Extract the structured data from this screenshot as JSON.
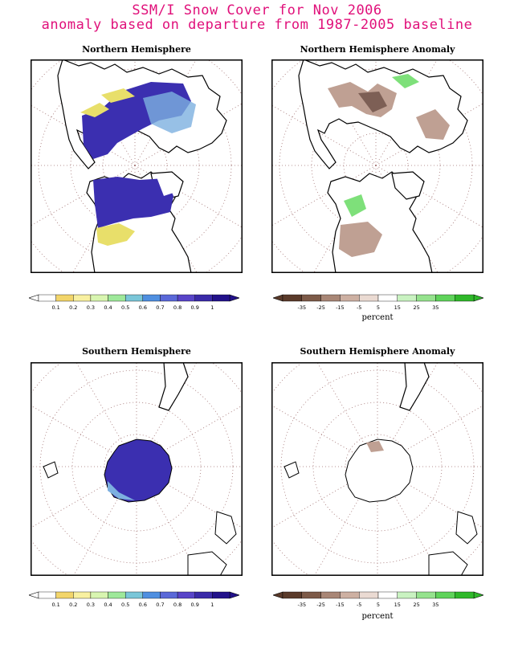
{
  "title": {
    "line1": "SSM/I Snow Cover for Nov 2006",
    "line2": "anomaly based on departure from 1987-2005 baseline"
  },
  "panels": [
    {
      "id": "nh",
      "title": "Northern Hemisphere"
    },
    {
      "id": "nh_anom",
      "title": "Northern Hemisphere Anomaly"
    },
    {
      "id": "sh",
      "title": "Southern Hemisphere"
    },
    {
      "id": "sh_anom",
      "title": "Southern Hemisphere Anomaly"
    }
  ],
  "colorbars": {
    "cover": {
      "labels": [
        "0.1",
        "0.2",
        "0.3",
        "0.4",
        "0.5",
        "0.6",
        "0.7",
        "0.8",
        "0.9",
        "1"
      ],
      "colors": [
        "#ffffff",
        "#f2d56a",
        "#f8f0a0",
        "#d8f5b0",
        "#9ee89a",
        "#7ac6d8",
        "#4f8fe0",
        "#5a68d8",
        "#5844c8",
        "#3a2aa8",
        "#22118a"
      ]
    },
    "anomaly": {
      "labels": [
        "-35",
        "-25",
        "-15",
        "-5",
        "5",
        "15",
        "25",
        "35"
      ],
      "unit": "percent",
      "colors": [
        "#5a3a2a",
        "#7d5a48",
        "#a88676",
        "#cdb0a2",
        "#eadad2",
        "#ffffff",
        "#c9f2c1",
        "#95e28d",
        "#5fd35a",
        "#2fb82a"
      ]
    }
  },
  "map_colors": {
    "grid": "#a07070",
    "land": "#000000",
    "snow": "#3b2fb0",
    "snow_light": "#7db0e0",
    "snow_edge": "#e8df6a",
    "anom_neg": "#bfa093",
    "anom_neg_dark": "#7d5f55",
    "anom_pos": "#7ee07a"
  }
}
